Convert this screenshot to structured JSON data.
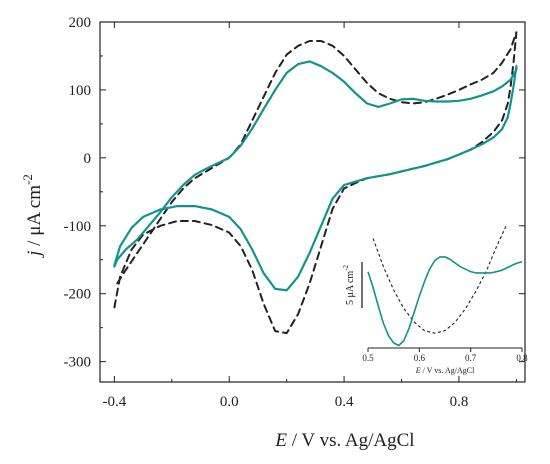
{
  "chart_data": [
    {
      "type": "line",
      "xlabel_italic": "E",
      "xlabel_rest": " / V vs. Ag/AgCl",
      "ylabel_italic": "j",
      "ylabel_rest": " / μA cm",
      "ylabel_sup": "-2",
      "xlim": [
        -0.45,
        1.03
      ],
      "ylim": [
        -330,
        200
      ],
      "xticks": [
        {
          "value": -0.4,
          "label": "-0.4"
        },
        {
          "value": 0.0,
          "label": "0.0"
        },
        {
          "value": 0.4,
          "label": "0.4"
        },
        {
          "value": 0.8,
          "label": "0.8"
        }
      ],
      "yticks": [
        {
          "value": 200,
          "label": "200"
        },
        {
          "value": 100,
          "label": "100"
        },
        {
          "value": 0,
          "label": "0"
        },
        {
          "value": -100,
          "label": "-100"
        },
        {
          "value": -200,
          "label": "-200"
        },
        {
          "value": -300,
          "label": "-300"
        }
      ],
      "series": [
        {
          "style": "dashed",
          "color": "#222222",
          "x": [
            -0.4,
            -0.38,
            -0.34,
            -0.3,
            -0.24,
            -0.18,
            -0.12,
            -0.06,
            0.0,
            0.04,
            0.08,
            0.12,
            0.16,
            0.2,
            0.24,
            0.28,
            0.32,
            0.36,
            0.4,
            0.44,
            0.48,
            0.52,
            0.56,
            0.6,
            0.64,
            0.68,
            0.72,
            0.76,
            0.8,
            0.84,
            0.88,
            0.92,
            0.95,
            0.97,
            0.98,
            0.99,
            1.0,
            1.0,
            0.98,
            0.95,
            0.92,
            0.88,
            0.84,
            0.8,
            0.76,
            0.72,
            0.68,
            0.64,
            0.6,
            0.56,
            0.52,
            0.48,
            0.44,
            0.4,
            0.36,
            0.32,
            0.28,
            0.24,
            0.2,
            0.16,
            0.12,
            0.08,
            0.04,
            0.0,
            -0.04,
            -0.08,
            -0.12,
            -0.16,
            -0.2,
            -0.24,
            -0.28,
            -0.32,
            -0.36,
            -0.39,
            -0.4
          ],
          "y": [
            -220,
            -175,
            -135,
            -113,
            -100,
            -93,
            -93,
            -99,
            -110,
            -130,
            -165,
            -215,
            -255,
            -258,
            -230,
            -185,
            -130,
            -75,
            -45,
            -37,
            -30,
            -27,
            -24,
            -20,
            -16,
            -12,
            -7,
            -2,
            5,
            12,
            23,
            38,
            55,
            80,
            105,
            140,
            185,
            185,
            160,
            140,
            125,
            115,
            108,
            100,
            93,
            87,
            82,
            80,
            82,
            87,
            95,
            110,
            130,
            150,
            165,
            172,
            172,
            165,
            152,
            125,
            90,
            55,
            20,
            0,
            -10,
            -20,
            -30,
            -45,
            -65,
            -90,
            -115,
            -140,
            -165,
            -185,
            -190
          ]
        },
        {
          "style": "solid",
          "color": "#12938E",
          "x": [
            -0.4,
            -0.38,
            -0.34,
            -0.3,
            -0.24,
            -0.18,
            -0.12,
            -0.06,
            0.0,
            0.04,
            0.08,
            0.12,
            0.16,
            0.2,
            0.24,
            0.28,
            0.32,
            0.36,
            0.4,
            0.44,
            0.48,
            0.52,
            0.56,
            0.6,
            0.64,
            0.68,
            0.72,
            0.76,
            0.8,
            0.84,
            0.88,
            0.92,
            0.95,
            0.97,
            0.98,
            0.99,
            1.0,
            1.0,
            0.98,
            0.95,
            0.92,
            0.88,
            0.84,
            0.8,
            0.76,
            0.72,
            0.68,
            0.64,
            0.6,
            0.56,
            0.52,
            0.48,
            0.44,
            0.4,
            0.36,
            0.32,
            0.28,
            0.24,
            0.2,
            0.16,
            0.12,
            0.08,
            0.04,
            0.0,
            -0.04,
            -0.08,
            -0.12,
            -0.16,
            -0.2,
            -0.24,
            -0.28,
            -0.32,
            -0.36,
            -0.39,
            -0.4
          ],
          "y": [
            -158,
            -130,
            -103,
            -87,
            -76,
            -71,
            -71,
            -76,
            -87,
            -105,
            -135,
            -170,
            -193,
            -195,
            -175,
            -140,
            -100,
            -60,
            -40,
            -35,
            -30,
            -27,
            -24,
            -20,
            -16,
            -12,
            -7,
            -2,
            5,
            12,
            20,
            30,
            42,
            60,
            80,
            105,
            135,
            130,
            115,
            105,
            98,
            92,
            87,
            84,
            83,
            83,
            84,
            87,
            86,
            80,
            75,
            80,
            95,
            112,
            125,
            135,
            142,
            138,
            125,
            100,
            72,
            43,
            18,
            0,
            -8,
            -16,
            -25,
            -40,
            -58,
            -80,
            -100,
            -120,
            -135,
            -150,
            -160
          ]
        }
      ]
    },
    {
      "type": "line",
      "xlabel_italic": "E",
      "xlabel_rest": " / V vs. Ag/AgCl",
      "scale_label": "5 μA cm",
      "scale_sup": "-2",
      "xlim": [
        0.5,
        0.8
      ],
      "xticks": [
        {
          "value": 0.5,
          "label": "0.5"
        },
        {
          "value": 0.6,
          "label": "0.6"
        },
        {
          "value": 0.7,
          "label": "0.7"
        },
        {
          "value": 0.8,
          "label": "0.8"
        }
      ],
      "series": [
        {
          "style": "dotted",
          "color": "#222222",
          "x": [
            0.51,
            0.53,
            0.55,
            0.57,
            0.59,
            0.61,
            0.63,
            0.65,
            0.67,
            0.69,
            0.71,
            0.73,
            0.75,
            0.77
          ],
          "y": [
            0.85,
            0.62,
            0.43,
            0.28,
            0.17,
            0.1,
            0.08,
            0.1,
            0.17,
            0.28,
            0.42,
            0.58,
            0.78,
            0.96
          ]
        },
        {
          "style": "solid",
          "color": "#12938E",
          "x": [
            0.5,
            0.51,
            0.52,
            0.53,
            0.54,
            0.55,
            0.56,
            0.57,
            0.58,
            0.59,
            0.6,
            0.61,
            0.62,
            0.63,
            0.64,
            0.65,
            0.66,
            0.67,
            0.68,
            0.69,
            0.7,
            0.71,
            0.72,
            0.73,
            0.74,
            0.75,
            0.76,
            0.77,
            0.78,
            0.79,
            0.8
          ],
          "y": [
            0.58,
            0.45,
            0.3,
            0.16,
            0.06,
            0.0,
            -0.02,
            0.02,
            0.12,
            0.25,
            0.38,
            0.5,
            0.6,
            0.67,
            0.7,
            0.7,
            0.68,
            0.65,
            0.62,
            0.6,
            0.58,
            0.57,
            0.57,
            0.57,
            0.57,
            0.58,
            0.59,
            0.61,
            0.63,
            0.65,
            0.66
          ]
        }
      ]
    }
  ]
}
